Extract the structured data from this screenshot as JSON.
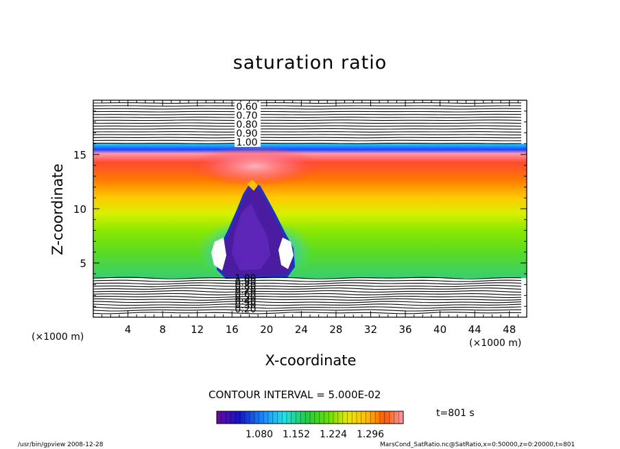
{
  "chart_data": {
    "type": "heatmap",
    "title": "saturation ratio",
    "xlabel": "X-coordinate",
    "ylabel": "Z-coordinate",
    "x_unit": "(×1000 m)",
    "xlim": [
      0,
      50
    ],
    "ylim": [
      0,
      20
    ],
    "x_ticks": [
      4,
      8,
      12,
      16,
      20,
      24,
      28,
      32,
      36,
      40,
      44,
      48
    ],
    "y_ticks": [
      5,
      10,
      15
    ],
    "contour_labels_upper": [
      "0.60",
      "0.70",
      "0.80",
      "0.90",
      "1.00"
    ],
    "contour_labels_lower": [
      "1.00",
      "0.90",
      "0.80",
      "0.70",
      "0.60",
      "0.50",
      "0.40",
      "0.30",
      "0.20"
    ],
    "contour_interval": "CONTOUR INTERVAL = 5.000E-02",
    "colorbar_ticks": [
      "1.080",
      "1.152",
      "1.224",
      "1.296"
    ],
    "time": "t=801 s",
    "colors": {
      "low": "#4a0a8c",
      "mid": "#33dd22",
      "high": "#ff3300",
      "peak": "#ffb0c0"
    }
  },
  "footer": {
    "left": "/usr/bin/gpview  2008-12-28",
    "right": "MarsCond_SatRatio.nc@SatRatio,x=0:50000,z=0:20000,t=801"
  }
}
